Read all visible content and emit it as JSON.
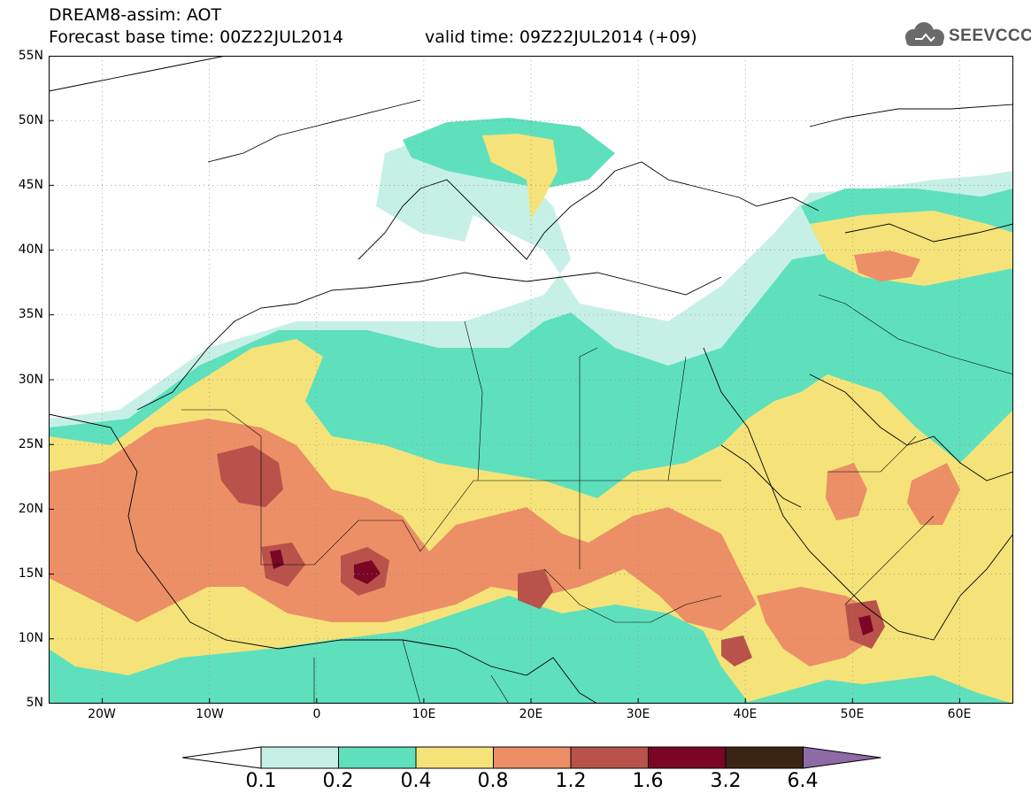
{
  "header": {
    "line1": "DREAM8-assim: AOT",
    "line2_base": "Forecast base time: 00Z22JUL2014",
    "line2_valid": "valid time: 09Z22JUL2014 (+09)"
  },
  "logo": {
    "text": "SEEVCCC",
    "icon": "cloud-icon"
  },
  "map": {
    "lon_range": [
      -25,
      65
    ],
    "lat_range": [
      5,
      55
    ],
    "lat_ticks": [
      "55N",
      "50N",
      "45N",
      "40N",
      "35N",
      "30N",
      "25N",
      "20N",
      "15N",
      "10N",
      "5N"
    ],
    "lon_ticks": [
      "20W",
      "10W",
      "0",
      "10E",
      "20E",
      "30E",
      "40E",
      "50E",
      "60E"
    ],
    "grid": "dotted"
  },
  "legend": {
    "levels": [
      "0.1",
      "0.2",
      "0.4",
      "0.8",
      "1.2",
      "1.6",
      "3.2",
      "6.4"
    ],
    "colors": [
      "#ffffff",
      "#c6f0e6",
      "#5fe0bd",
      "#f5e37a",
      "#ec8f66",
      "#b9524a",
      "#7a0525",
      "#3c2415",
      "#8e6aa6"
    ]
  }
}
